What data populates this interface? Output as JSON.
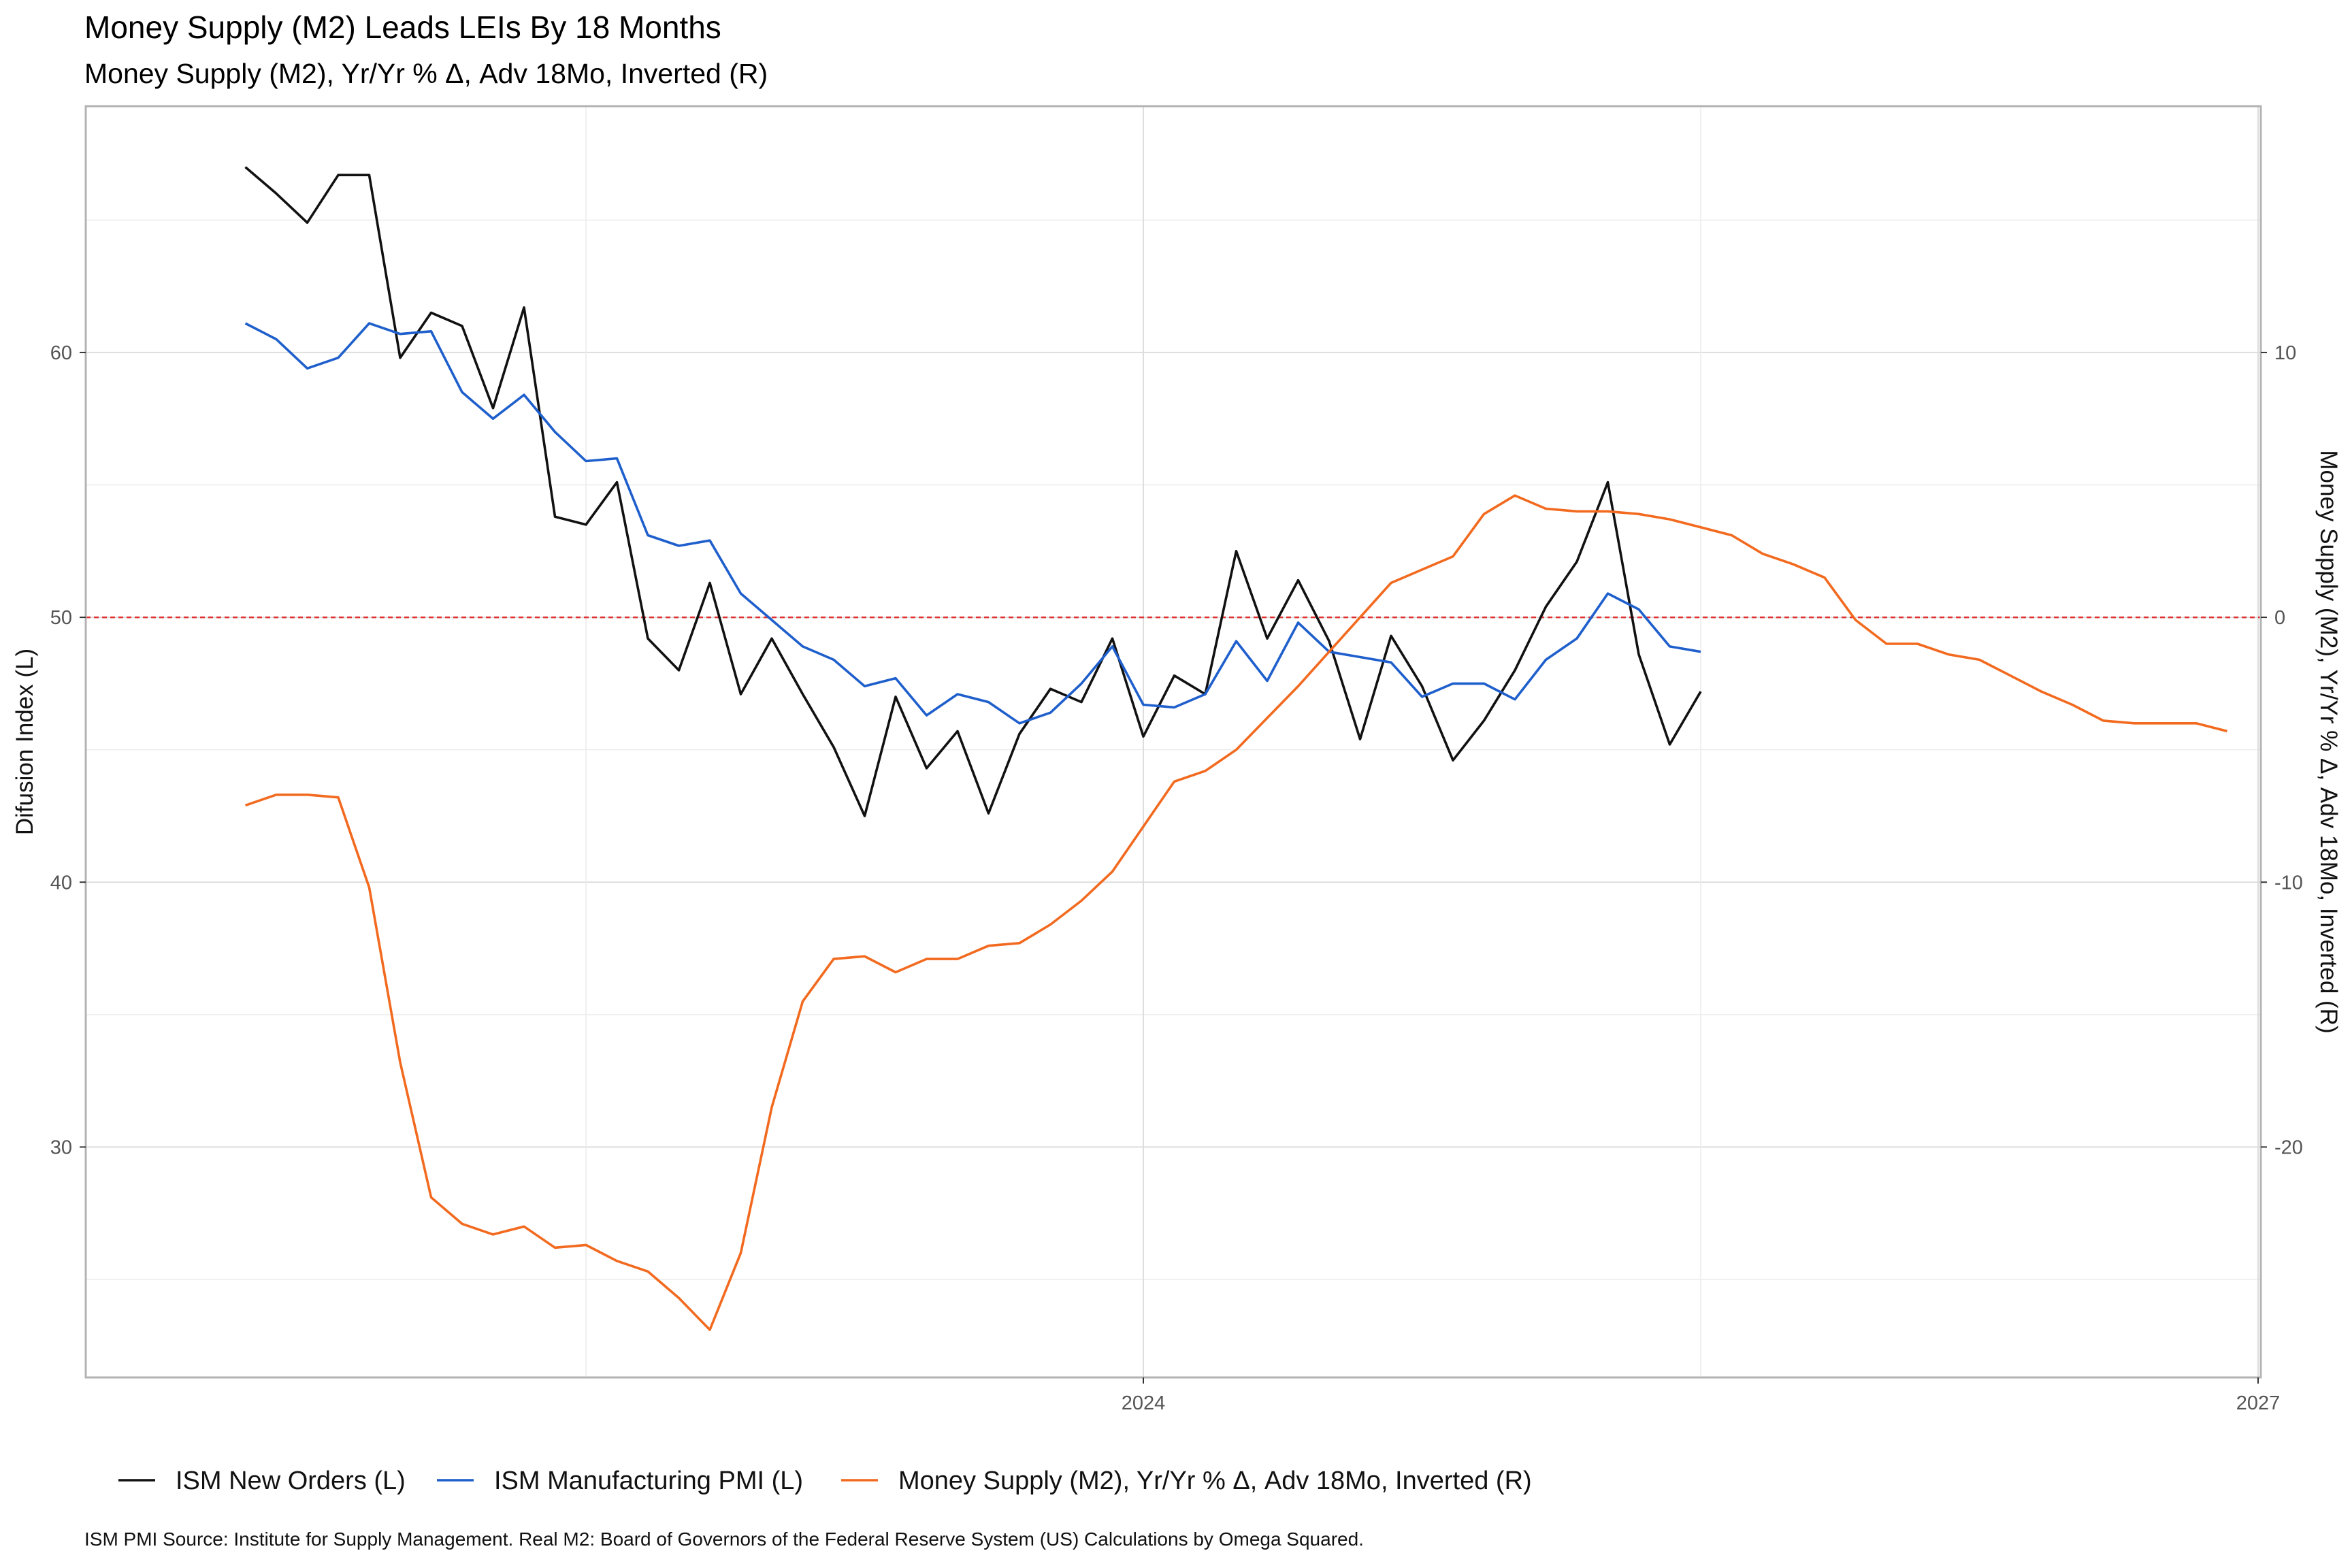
{
  "chart_data": {
    "type": "line",
    "title": "Money Supply (M2)  Leads LEIs By  18  Months",
    "subtitle": "Money Supply (M2), Yr/Yr % Δ, Adv 18Mo, Inverted (R)",
    "ylabel_left": "Difusion Index (L)",
    "ylabel_right": "Money Supply (M2), Yr/Yr % Δ, Adv 18Mo, Inverted (R)",
    "caption": "ISM PMI Source: Institute for Supply Management. Real M2:  Board of Governors of the Federal Reserve System (US) Calculations by Omega Squared.",
    "x_ticks": [
      "2024",
      "2027"
    ],
    "ylim_left": [
      21.3,
      69.3
    ],
    "yticks_left": [
      "30",
      "40",
      "50",
      "60"
    ],
    "ylim_right": [
      -28.7,
      19.3
    ],
    "yticks_right": [
      "-20",
      "-10",
      "0",
      "10"
    ],
    "reference_line": {
      "value": 50,
      "axis": "left",
      "color": "#e03030",
      "style": "dashed"
    },
    "grid": true,
    "legend_position": "bottom",
    "x_start": "2021-08",
    "series": [
      {
        "name": "ISM New Orders (L)",
        "axis": "left",
        "color": "#111111",
        "values": [
          67.0,
          66.0,
          64.9,
          66.7,
          66.7,
          59.8,
          61.5,
          61.0,
          57.9,
          61.7,
          53.8,
          53.5,
          55.1,
          49.2,
          48.0,
          51.3,
          47.1,
          49.2,
          47.1,
          45.1,
          42.5,
          47.0,
          44.3,
          45.7,
          42.6,
          45.6,
          47.3,
          46.8,
          49.2,
          45.5,
          47.8,
          47.1,
          52.5,
          49.2,
          51.4,
          49.1,
          45.4,
          49.3,
          47.4,
          44.6,
          46.1,
          48.0,
          50.4,
          52.1,
          55.1,
          48.6,
          45.2,
          47.2
        ]
      },
      {
        "name": "ISM Manufacturing PMI (L)",
        "axis": "left",
        "color": "#1f5fcc",
        "values": [
          61.1,
          60.5,
          59.4,
          59.8,
          61.1,
          60.7,
          60.8,
          58.5,
          57.5,
          58.4,
          57.0,
          55.9,
          56.0,
          53.1,
          52.7,
          52.9,
          50.9,
          49.9,
          48.9,
          48.4,
          47.4,
          47.7,
          46.3,
          47.1,
          46.8,
          46.0,
          46.4,
          47.5,
          48.9,
          46.7,
          46.6,
          47.1,
          49.1,
          47.6,
          49.8,
          48.7,
          48.5,
          48.3,
          47.0,
          47.5,
          47.5,
          46.9,
          48.4,
          49.2,
          50.9,
          50.3,
          48.9,
          48.7
        ]
      },
      {
        "name": "Money Supply (M2), Yr/Yr % Δ, Adv 18Mo, Inverted (R)",
        "axis": "right",
        "color": "#f26a1f",
        "values": [
          -7.1,
          -6.7,
          -6.7,
          -6.8,
          -10.2,
          -16.8,
          -21.9,
          -22.9,
          -23.3,
          -23.0,
          -23.8,
          -23.7,
          -24.3,
          -24.7,
          -25.7,
          -26.9,
          -24.0,
          -18.5,
          -14.5,
          -12.9,
          -12.8,
          -13.4,
          -12.9,
          -12.9,
          -12.4,
          -12.3,
          -11.6,
          -10.7,
          -9.6,
          -7.9,
          -6.2,
          -5.8,
          -5.0,
          -3.8,
          -2.6,
          -1.3,
          0.0,
          1.3,
          1.8,
          2.3,
          3.9,
          4.6,
          4.1,
          4.0,
          4.0,
          3.9,
          3.7,
          3.4,
          3.1,
          2.4,
          2.0,
          1.5,
          -0.1,
          -1.0,
          -1.0,
          -1.4,
          -1.6,
          -2.2,
          -2.8,
          -3.3,
          -3.9,
          -4.0,
          -4.0,
          -4.0,
          -4.3
        ]
      }
    ]
  }
}
